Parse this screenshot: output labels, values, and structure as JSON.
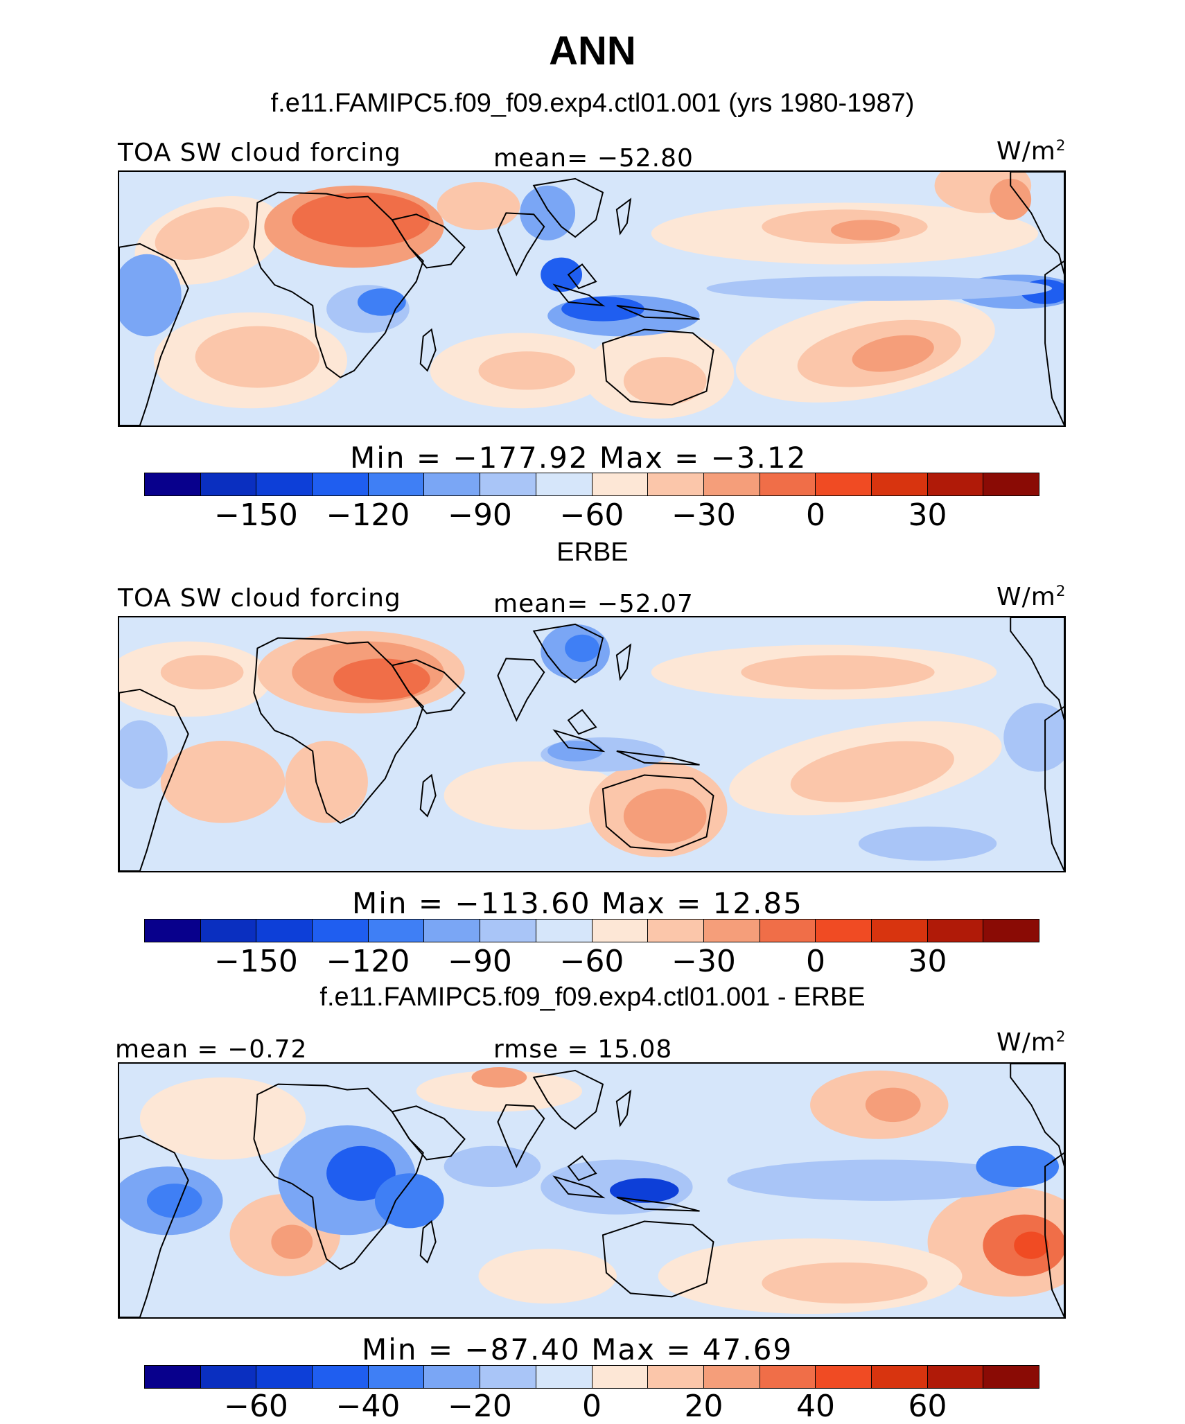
{
  "title": "ANN",
  "colors": [
    "#08008c",
    "#0a2fc0",
    "#0d3fd8",
    "#1f5ef0",
    "#3f7ff5",
    "#7aa6f5",
    "#a9c5f7",
    "#d6e6fa",
    "#fde7d6",
    "#fbc6aa",
    "#f59e7a",
    "#f06e48",
    "#f04b23",
    "#d8340f",
    "#b01a08",
    "#8a0b05"
  ],
  "panels": [
    {
      "header": "f.e11.FAMIPC5.f09_f09.exp4.ctl01.001 (yrs 1980-1987)",
      "left_label": "TOA SW cloud forcing",
      "center_label": "mean= −52.80",
      "units_base": "W/m",
      "units_exp": "2",
      "minmax": "Min  =  −177.92  Max  =   −3.12",
      "ticks": [
        "−150",
        "−120",
        "−90",
        "−60",
        "−30",
        "0",
        "30"
      ],
      "field": {
        "type": "model",
        "mean": -52.8,
        "min": -177.92,
        "max": -3.12
      }
    },
    {
      "header": "ERBE",
      "left_label": "TOA SW cloud forcing",
      "center_label": "mean= −52.07",
      "units_base": "W/m",
      "units_exp": "2",
      "minmax": "Min  =  −113.60  Max  =   12.85",
      "ticks": [
        "−150",
        "−120",
        "−90",
        "−60",
        "−30",
        "0",
        "30"
      ],
      "field": {
        "type": "obs",
        "mean": -52.07,
        "min": -113.6,
        "max": 12.85
      }
    },
    {
      "header": "f.e11.FAMIPC5.f09_f09.exp4.ctl01.001 - ERBE",
      "left_label": "mean  =   −0.72",
      "center_label": "rmse  =   15.08",
      "units_base": "W/m",
      "units_exp": "2",
      "minmax": "Min  =  −87.40  Max  =   47.69",
      "ticks": [
        "−60",
        "−40",
        "−20",
        "0",
        "20",
        "40",
        "60"
      ],
      "field": {
        "type": "diff",
        "mean": -0.72,
        "min": -87.4,
        "max": 47.69
      }
    }
  ]
}
